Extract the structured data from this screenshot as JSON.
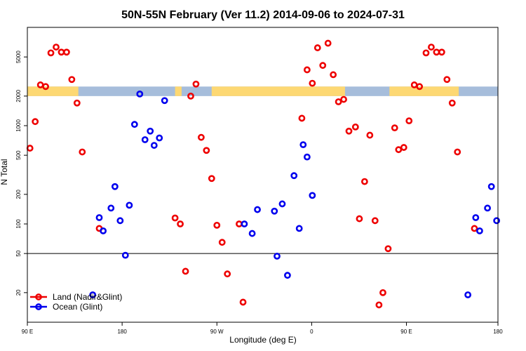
{
  "chart_data": {
    "type": "scatter",
    "title": "50N-55N February (Ver 11.2)   2014-09-06 to 2024-07-31",
    "xlabel": "Longitude (deg E)",
    "ylabel": "N Total",
    "x_scale": "linear",
    "y_scale": "log",
    "xlim": [
      0,
      360
    ],
    "ylim": [
      10,
      10000
    ],
    "x_ticks": [
      {
        "value": 0,
        "label": "90 E"
      },
      {
        "value": 72.5,
        "label": "180"
      },
      {
        "value": 145,
        "label": "90 W"
      },
      {
        "value": 217.5,
        "label": "0"
      },
      {
        "value": 290,
        "label": "90 E"
      },
      {
        "value": 360,
        "label": "180"
      }
    ],
    "y_ticks": [
      {
        "value": 20,
        "label": "20"
      },
      {
        "value": 50,
        "label": "50"
      },
      {
        "value": 100,
        "label": "100"
      },
      {
        "value": 200,
        "label": "200"
      },
      {
        "value": 500,
        "label": "500"
      },
      {
        "value": 1000,
        "label": "1000"
      },
      {
        "value": 2000,
        "label": "2000"
      },
      {
        "value": 5000,
        "label": "5000"
      }
    ],
    "reference_line": {
      "y": 50,
      "color": "#000000"
    },
    "surface_band": {
      "y_range": [
        2000,
        2500
      ],
      "ocean_color": "#a6bddb",
      "land_color": "#fdd873",
      "land_spans": [
        [
          0,
          39
        ],
        [
          113,
          118
        ],
        [
          141,
          243
        ],
        [
          277,
          330
        ]
      ]
    },
    "series": [
      {
        "name": "Land (Nadir&Glint)",
        "color": "#ee0000",
        "points": [
          [
            2,
            590
          ],
          [
            6,
            1100
          ],
          [
            10,
            2600
          ],
          [
            14,
            2500
          ],
          [
            18,
            5500
          ],
          [
            22,
            6300
          ],
          [
            26,
            5600
          ],
          [
            30,
            5600
          ],
          [
            34,
            2950
          ],
          [
            38,
            1700
          ],
          [
            42,
            540
          ],
          [
            55,
            90
          ],
          [
            113,
            115
          ],
          [
            117,
            100
          ],
          [
            121,
            33
          ],
          [
            125,
            2000
          ],
          [
            129,
            2650
          ],
          [
            133,
            760
          ],
          [
            137,
            560
          ],
          [
            141,
            290
          ],
          [
            145,
            97
          ],
          [
            149,
            65
          ],
          [
            153,
            31
          ],
          [
            162,
            100
          ],
          [
            165,
            16
          ],
          [
            210,
            1190
          ],
          [
            214,
            3700
          ],
          [
            218,
            2700
          ],
          [
            222,
            6200
          ],
          [
            226,
            4100
          ],
          [
            230,
            6900
          ],
          [
            234,
            3300
          ],
          [
            238,
            1750
          ],
          [
            242,
            1850
          ],
          [
            246,
            880
          ],
          [
            251,
            970
          ],
          [
            254,
            113
          ],
          [
            258,
            270
          ],
          [
            262,
            800
          ],
          [
            266,
            108
          ],
          [
            269,
            15
          ],
          [
            272,
            20
          ],
          [
            276,
            56
          ],
          [
            281,
            950
          ],
          [
            284,
            570
          ],
          [
            288,
            600
          ],
          [
            292,
            1120
          ],
          [
            296,
            2600
          ],
          [
            300,
            2500
          ],
          [
            305,
            5500
          ],
          [
            309,
            6300
          ],
          [
            313,
            5600
          ],
          [
            317,
            5600
          ],
          [
            321,
            2950
          ],
          [
            325,
            1700
          ],
          [
            329,
            540
          ],
          [
            342,
            90
          ]
        ]
      },
      {
        "name": "Ocean (Glint)",
        "color": "#0000ee",
        "points": [
          [
            50,
            19
          ],
          [
            55,
            116
          ],
          [
            58,
            85
          ],
          [
            64,
            145
          ],
          [
            67,
            240
          ],
          [
            71,
            108
          ],
          [
            75,
            48
          ],
          [
            78,
            155
          ],
          [
            82,
            1030
          ],
          [
            86,
            2100
          ],
          [
            90,
            720
          ],
          [
            94,
            880
          ],
          [
            97,
            630
          ],
          [
            101,
            750
          ],
          [
            105,
            1800
          ],
          [
            166,
            100
          ],
          [
            172,
            80
          ],
          [
            176,
            140
          ],
          [
            189,
            135
          ],
          [
            191,
            47
          ],
          [
            195,
            160
          ],
          [
            199,
            30
          ],
          [
            204,
            310
          ],
          [
            208,
            90
          ],
          [
            211,
            640
          ],
          [
            214,
            480
          ],
          [
            218,
            195
          ],
          [
            337,
            19
          ],
          [
            343,
            116
          ],
          [
            346,
            85
          ],
          [
            352,
            145
          ],
          [
            355,
            240
          ],
          [
            359,
            108
          ]
        ]
      }
    ],
    "legend": {
      "position": "bottom-left",
      "entries": [
        {
          "name": "Land (Nadir&Glint)",
          "color": "#ee0000"
        },
        {
          "name": "Ocean (Glint)",
          "color": "#0000ee"
        }
      ]
    }
  }
}
